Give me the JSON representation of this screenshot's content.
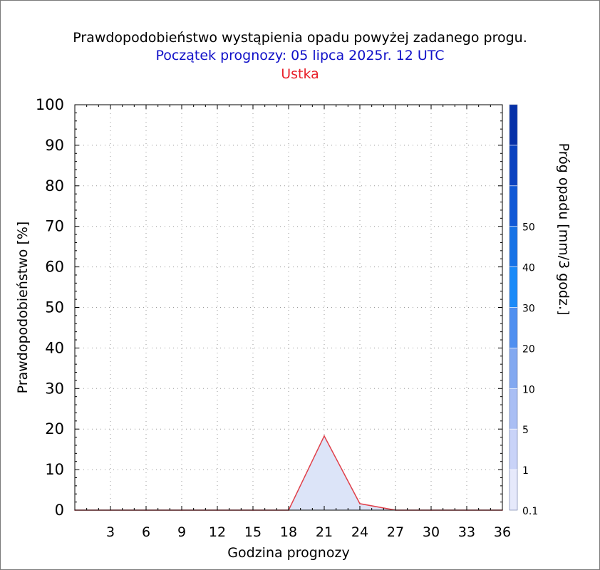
{
  "colors": {
    "title": "#000000",
    "subtitle": "#1010c8",
    "location": "#e8202a",
    "series_line": "#e0404a",
    "series_fill": "#dce4f8"
  },
  "chart_data": {
    "type": "area",
    "title": "Prawdopodobieństwo wystąpienia opadu powyżej zadanego progu.",
    "subtitle": "Początek prognozy: 05 lipca 2025r. 12 UTC",
    "location": "Ustka",
    "xlabel": "Godzina prognozy",
    "ylabel": "Prawdopodobieństwo [%]",
    "xlim": [
      0,
      36
    ],
    "ylim": [
      0,
      100
    ],
    "x_ticks": [
      3,
      6,
      9,
      12,
      15,
      18,
      21,
      24,
      27,
      30,
      33,
      36
    ],
    "y_ticks": [
      0,
      10,
      20,
      30,
      40,
      50,
      60,
      70,
      80,
      90,
      100
    ],
    "grid": true,
    "series": [
      {
        "x": [
          0,
          3,
          6,
          9,
          12,
          15,
          18,
          21,
          24,
          27,
          30,
          33,
          36
        ],
        "values": [
          0,
          0,
          0,
          0,
          0,
          0,
          0,
          18.3,
          1.6,
          0,
          0,
          0,
          0
        ]
      }
    ],
    "colorbar": {
      "label": "Próg opadu [mm/3 godz.]",
      "tick_labels": [
        "0.1",
        "1",
        "5",
        "10",
        "20",
        "30",
        "40",
        "50"
      ],
      "colors": [
        "#e6e9fb",
        "#c9d3f8",
        "#a9bef4",
        "#82a8f0",
        "#4f8ff0",
        "#1a8af8",
        "#1672e6",
        "#1058d6",
        "#0a42c0",
        "#0630a8"
      ]
    }
  }
}
